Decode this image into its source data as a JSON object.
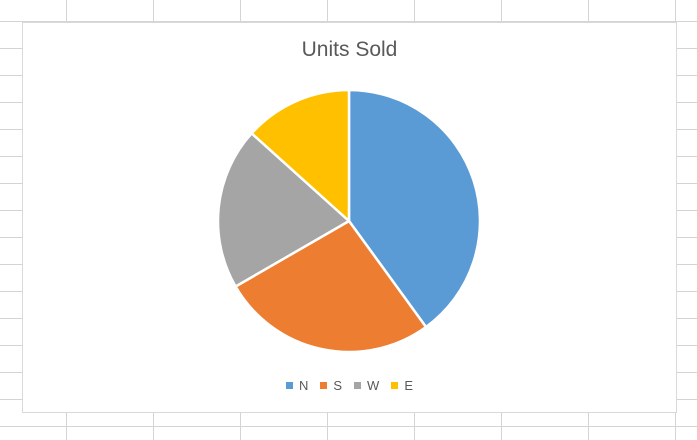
{
  "chart_data": {
    "type": "pie",
    "title": "Units Sold",
    "categories": [
      "N",
      "S",
      "W",
      "E"
    ],
    "values": [
      6,
      4,
      3,
      2
    ],
    "colors": [
      "#5b9bd5",
      "#ed7d31",
      "#a5a5a5",
      "#ffc000"
    ],
    "start_angle_deg": 0,
    "direction": "clockwise",
    "legend_position": "bottom"
  }
}
